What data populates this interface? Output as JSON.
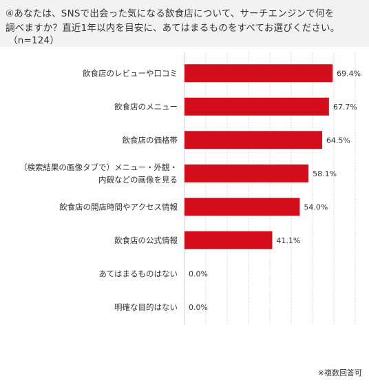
{
  "title": {
    "line1": "④あなたは、SNSで出会った気になる飲食店について、サーチエンジンで何を",
    "line2": "調べますか？直近1年以内を目安に、あてはまるものをすべてお選びください。",
    "line3": "（n=124）"
  },
  "note": "※複数回答可",
  "colors": {
    "bar": "#d40d1a",
    "grid": "#d0d0d0"
  },
  "chart_data": {
    "type": "bar",
    "orientation": "horizontal",
    "categories": [
      [
        "飲食店のレビューや口コミ"
      ],
      [
        "飲食店のメニュー"
      ],
      [
        "飲食店の価格帯"
      ],
      [
        "（検索結果の画像タブで）メニュー・外観・",
        "内観などの画像を見る"
      ],
      [
        "飲食店の開店時間やアクセス情報"
      ],
      [
        "飲食店の公式情報"
      ],
      [
        "あてはまるものはない"
      ],
      [
        "明確な目的はない"
      ]
    ],
    "values": [
      69.4,
      67.7,
      64.5,
      58.1,
      54.0,
      41.1,
      0.0,
      0.0
    ],
    "value_labels": [
      "69.4%",
      "67.7%",
      "64.5%",
      "58.1%",
      "54.0%",
      "41.1%",
      "0.0%",
      "0.0%"
    ],
    "xlim": [
      0,
      80
    ],
    "grid": true
  }
}
